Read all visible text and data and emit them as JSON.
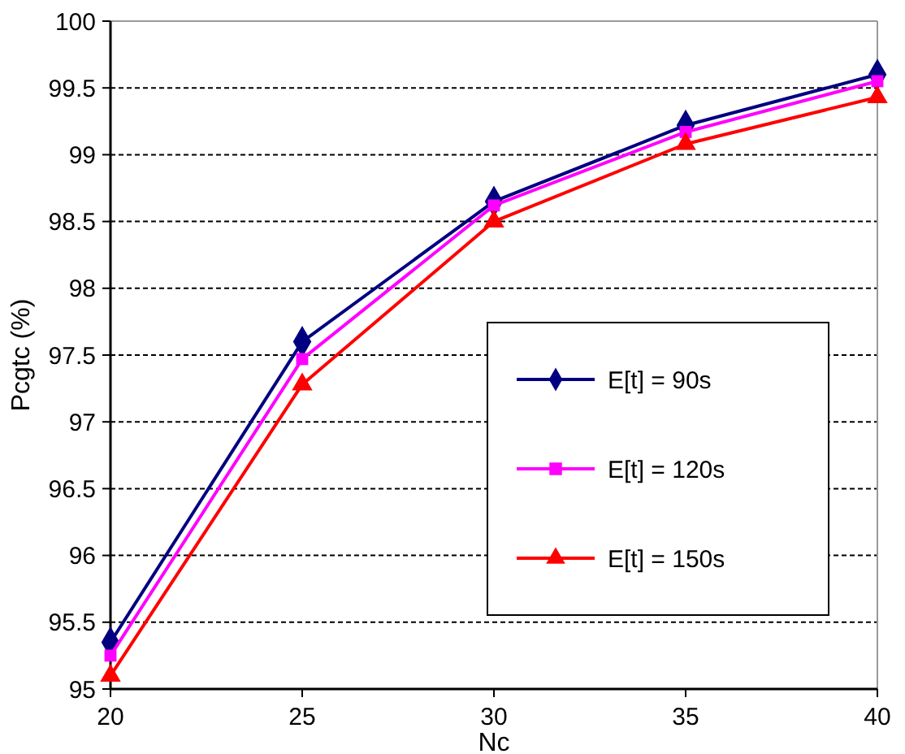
{
  "chart_data": {
    "type": "line",
    "xlabel": "Nc",
    "ylabel": "Pcgtc (%)",
    "x": [
      20,
      25,
      30,
      35,
      40
    ],
    "xlim": [
      20,
      40
    ],
    "xticks": [
      20,
      25,
      30,
      35,
      40
    ],
    "ylim": [
      95,
      100
    ],
    "yticks": [
      95,
      95.5,
      96,
      96.5,
      97,
      97.5,
      98,
      98.5,
      99,
      99.5,
      100
    ],
    "grid": "y",
    "legend": "right",
    "line_style": "solid",
    "series": [
      {
        "name": "E[t] = 90s",
        "color": "#000080",
        "marker": "diamond",
        "values": [
          95.35,
          97.6,
          98.65,
          99.22,
          99.6
        ]
      },
      {
        "name": "E[t] = 120s",
        "color": "#ff00ff",
        "marker": "square",
        "values": [
          95.25,
          97.47,
          98.62,
          99.17,
          99.55
        ]
      },
      {
        "name": "E[t] = 150s",
        "color": "#ff0000",
        "marker": "triangle",
        "values": [
          95.1,
          97.28,
          98.5,
          99.08,
          99.43
        ]
      }
    ]
  }
}
